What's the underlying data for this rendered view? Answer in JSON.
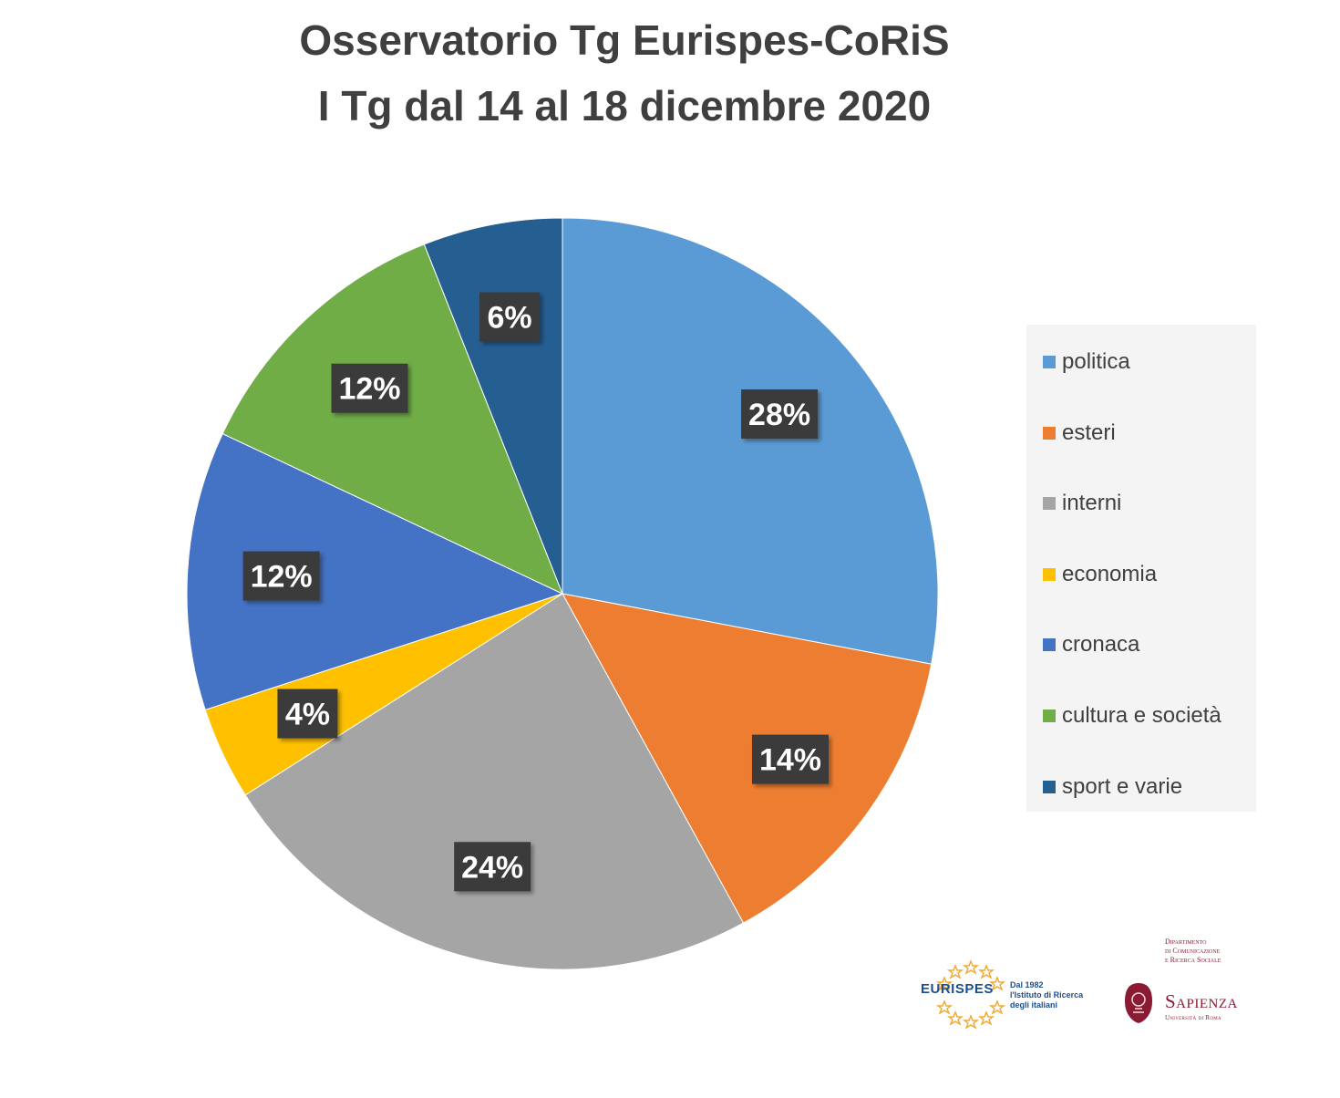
{
  "chart_data": {
    "type": "pie",
    "title": "Osservatorio Tg Eurispes-CoRiS",
    "subtitle": "I Tg dal 14 al 18 dicembre 2020",
    "legend_position": "right",
    "slices": [
      {
        "name": "politica",
        "value": 28,
        "label": "28%",
        "color": "#5b9bd5"
      },
      {
        "name": "esteri",
        "value": 14,
        "label": "14%",
        "color": "#ed7d31"
      },
      {
        "name": "interni",
        "value": 24,
        "label": "24%",
        "color": "#a5a5a5"
      },
      {
        "name": "economia",
        "value": 4,
        "label": "4%",
        "color": "#ffc000"
      },
      {
        "name": "cronaca",
        "value": 12,
        "label": "12%",
        "color": "#4472c4"
      },
      {
        "name": "cultura e società",
        "value": 12,
        "label": "12%",
        "color": "#70ad47"
      },
      {
        "name": "sport e varie",
        "value": 6,
        "label": "6%",
        "color": "#255e91"
      }
    ]
  },
  "logos": {
    "eurispes": {
      "name": "EURISPES",
      "tagline": [
        "Dal 1982",
        "l'Istituto di Ricerca",
        "degli italiani"
      ]
    },
    "sapienza": {
      "department": [
        "Dipartimento",
        "di Comunicazione",
        "e Ricerca Sociale"
      ],
      "name": "Sapienza",
      "subtitle": "Università di Roma"
    }
  }
}
